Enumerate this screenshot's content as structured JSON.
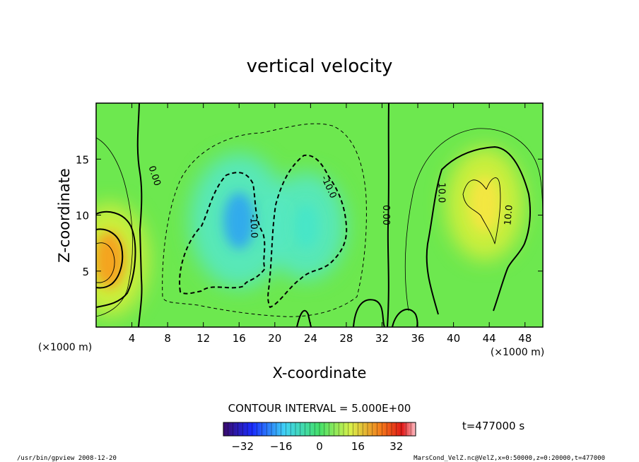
{
  "chart_data": {
    "type": "heatmap",
    "title": "vertical velocity",
    "xlabel": "X-coordinate",
    "ylabel": "Z-coordinate",
    "x_unit": "(×1000 m)",
    "y_unit": "(×1000 m)",
    "xlim": [
      0,
      50
    ],
    "ylim": [
      0,
      20
    ],
    "xticks": [
      4,
      8,
      12,
      16,
      20,
      24,
      28,
      32,
      36,
      40,
      44,
      48
    ],
    "yticks": [
      5,
      10,
      15
    ],
    "contour_interval": "CONTOUR INTERVAL = 5.000E+00",
    "contour_labels": [
      {
        "text": "0.00",
        "x": 6.5,
        "y": 13.5,
        "rotate": 72
      },
      {
        "text": "-10.0",
        "x": 17.6,
        "y": 9.0,
        "rotate": 88
      },
      {
        "text": "-10.0",
        "x": 26.0,
        "y": 12.5,
        "rotate": 65
      },
      {
        "text": "0.00",
        "x": 32.4,
        "y": 10.0,
        "rotate": 90
      },
      {
        "text": "10.0",
        "x": 38.6,
        "y": 12.0,
        "rotate": 90
      },
      {
        "text": "10.0",
        "x": 46.2,
        "y": 10.0,
        "rotate": -85
      }
    ],
    "field_features": [
      {
        "sign": "positive",
        "peak": 35,
        "x": 1.5,
        "y": 6.0
      },
      {
        "sign": "negative",
        "peak": -20,
        "x": 16.0,
        "y": 9.5
      },
      {
        "sign": "negative",
        "peak": -15,
        "x": 23.5,
        "y": 9.0
      },
      {
        "sign": "positive",
        "peak": 20,
        "x": 43.5,
        "y": 11.0
      }
    ],
    "colorbar": {
      "ticks": [
        "−32",
        "−16",
        "0",
        "16",
        "32"
      ],
      "range": [
        -40,
        40
      ]
    },
    "time_label": "t=477000 s",
    "footer_left": "/usr/bin/gpview  2008-12-20",
    "footer_right": "MarsCond_VelZ.nc@VelZ,x=0:50000,z=0:20000,t=477000"
  }
}
